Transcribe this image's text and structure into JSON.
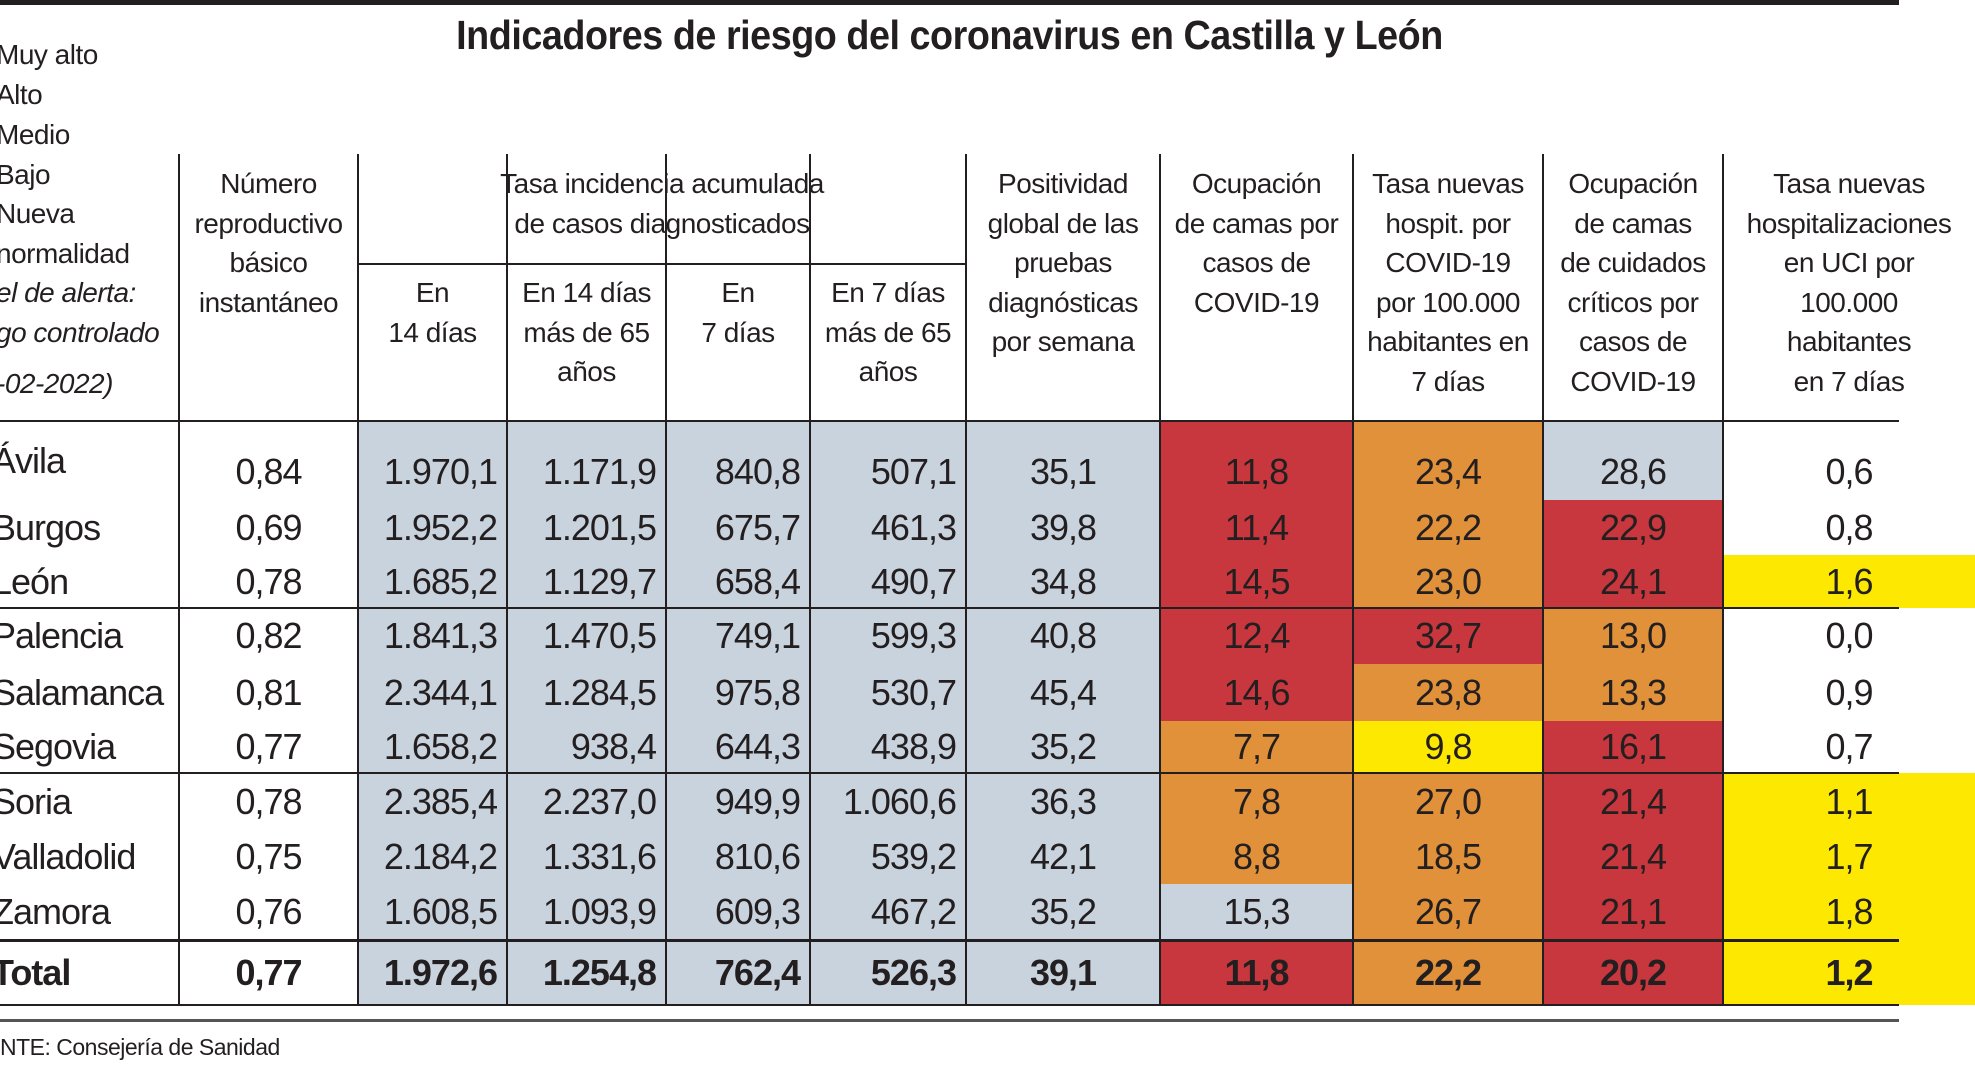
{
  "title": "Indicadores de riesgo del coronavirus en Castilla y León",
  "legend": {
    "items": [
      "Muy alto",
      "Alto",
      "Medio",
      "Bajo",
      "Nueva",
      "normalidad"
    ],
    "alert_lines": [
      "el de alerta:",
      "go controlado",
      "-02-2022)"
    ]
  },
  "colors": {
    "muy_alto": "#c8373d",
    "alto": "#e0913a",
    "medio": "#fce800",
    "bajo": "#c9d3dd",
    "nueva_normalidad": "#ffffff"
  },
  "headers": {
    "r": "Número\nreproductivo\nbásico\ninstantáneo",
    "incidence_group": "Tasa incidencia acumulada\nde casos diagnosticados",
    "inc14": "En\n14 días",
    "inc14_65": "En 14 días\nmás de 65\naños",
    "inc7": "En\n7 días",
    "inc7_65": "En 7 días\nmás de 65\naños",
    "positividad": "Positividad\nglobal de las\npruebas\ndiagnósticas\npor semana",
    "ocup_camas": "Ocupación\nde camas por\ncasos de\nCOVID-19",
    "tasa_hosp": "Tasa nuevas\nhospit. por\nCOVID-19\npor 100.000\nhabitantes en\n7 días",
    "ocup_uci": "Ocupación\nde camas\nde cuidados\ncríticos por\ncasos de\nCOVID-19",
    "tasa_uci": "Tasa nuevas\nhospitalizaciones\nen UCI por\n100.000\nhabitantes\nen 7 días"
  },
  "rows": [
    {
      "name": "Ávila",
      "values": [
        "0,84",
        "1.970,1",
        "1.171,9",
        "840,8",
        "507,1",
        "35,1",
        "11,8",
        "23,4",
        "28,6",
        "0,6"
      ],
      "levels": [
        "",
        "bajo",
        "bajo",
        "bajo",
        "bajo",
        "bajo",
        "muy_alto",
        "alto",
        "bajo",
        ""
      ]
    },
    {
      "name": "Burgos",
      "values": [
        "0,69",
        "1.952,2",
        "1.201,5",
        "675,7",
        "461,3",
        "39,8",
        "11,4",
        "22,2",
        "22,9",
        "0,8"
      ],
      "levels": [
        "",
        "bajo",
        "bajo",
        "bajo",
        "bajo",
        "bajo",
        "muy_alto",
        "alto",
        "muy_alto",
        ""
      ]
    },
    {
      "name": "León",
      "values": [
        "0,78",
        "1.685,2",
        "1.129,7",
        "658,4",
        "490,7",
        "34,8",
        "14,5",
        "23,0",
        "24,1",
        "1,6"
      ],
      "levels": [
        "",
        "bajo",
        "bajo",
        "bajo",
        "bajo",
        "bajo",
        "muy_alto",
        "alto",
        "muy_alto",
        "medio"
      ]
    },
    {
      "name": "Palencia",
      "values": [
        "0,82",
        "1.841,3",
        "1.470,5",
        "749,1",
        "599,3",
        "40,8",
        "12,4",
        "32,7",
        "13,0",
        "0,0"
      ],
      "levels": [
        "",
        "bajo",
        "bajo",
        "bajo",
        "bajo",
        "bajo",
        "muy_alto",
        "muy_alto",
        "alto",
        ""
      ]
    },
    {
      "name": "Salamanca",
      "values": [
        "0,81",
        "2.344,1",
        "1.284,5",
        "975,8",
        "530,7",
        "45,4",
        "14,6",
        "23,8",
        "13,3",
        "0,9"
      ],
      "levels": [
        "",
        "bajo",
        "bajo",
        "bajo",
        "bajo",
        "bajo",
        "muy_alto",
        "alto",
        "alto",
        ""
      ]
    },
    {
      "name": "Segovia",
      "values": [
        "0,77",
        "1.658,2",
        "938,4",
        "644,3",
        "438,9",
        "35,2",
        "7,7",
        "9,8",
        "16,1",
        "0,7"
      ],
      "levels": [
        "",
        "bajo",
        "bajo",
        "bajo",
        "bajo",
        "bajo",
        "alto",
        "medio",
        "muy_alto",
        ""
      ]
    },
    {
      "name": "Soria",
      "values": [
        "0,78",
        "2.385,4",
        "2.237,0",
        "949,9",
        "1.060,6",
        "36,3",
        "7,8",
        "27,0",
        "21,4",
        "1,1"
      ],
      "levels": [
        "",
        "bajo",
        "bajo",
        "bajo",
        "bajo",
        "bajo",
        "alto",
        "alto",
        "muy_alto",
        "medio"
      ]
    },
    {
      "name": "Valladolid",
      "values": [
        "0,75",
        "2.184,2",
        "1.331,6",
        "810,6",
        "539,2",
        "42,1",
        "8,8",
        "18,5",
        "21,4",
        "1,7"
      ],
      "levels": [
        "",
        "bajo",
        "bajo",
        "bajo",
        "bajo",
        "bajo",
        "alto",
        "alto",
        "muy_alto",
        "medio"
      ]
    },
    {
      "name": "Zamora",
      "values": [
        "0,76",
        "1.608,5",
        "1.093,9",
        "609,3",
        "467,2",
        "35,2",
        "15,3",
        "26,7",
        "21,1",
        "1,8"
      ],
      "levels": [
        "",
        "bajo",
        "bajo",
        "bajo",
        "bajo",
        "bajo",
        "bajo",
        "alto",
        "muy_alto",
        "medio"
      ]
    },
    {
      "name": "Total",
      "values": [
        "0,77",
        "1.972,6",
        "1.254,8",
        "762,4",
        "526,3",
        "39,1",
        "11,8",
        "22,2",
        "20,2",
        "1,2"
      ],
      "levels": [
        "",
        "bajo",
        "bajo",
        "bajo",
        "bajo",
        "bajo",
        "muy_alto",
        "alto",
        "muy_alto",
        "medio"
      ]
    }
  ],
  "footer": "NTE: Consejería de Sanidad"
}
